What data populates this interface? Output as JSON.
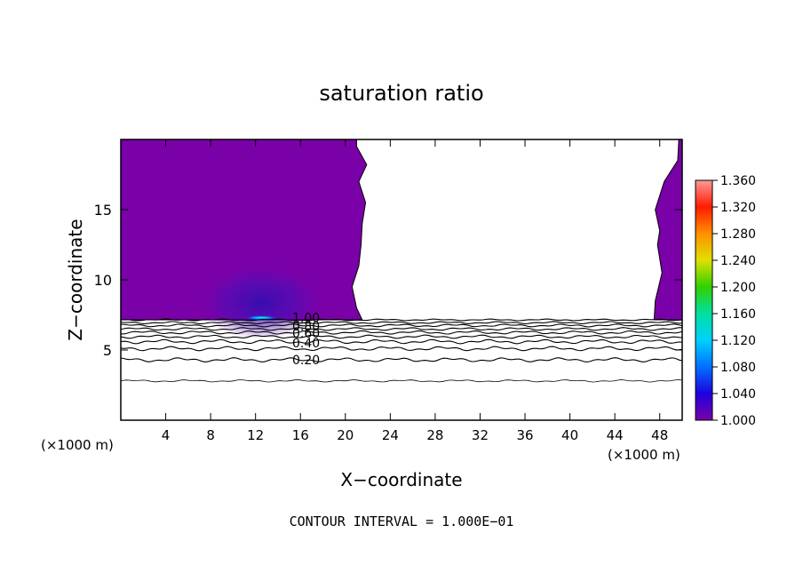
{
  "chart_data": {
    "type": "heatmap",
    "title": "saturation ratio",
    "xlabel": "X−coordinate",
    "ylabel": "Z−coordinate",
    "x_unit_label": "(×1000 m)",
    "z_unit_label": "(×1000 m)",
    "xlim": [
      0,
      50
    ],
    "zlim": [
      0,
      20
    ],
    "x_ticks": [
      4,
      8,
      12,
      16,
      20,
      24,
      28,
      32,
      36,
      40,
      44,
      48
    ],
    "z_ticks": [
      5,
      10,
      15
    ],
    "colorbar": {
      "min": 1.0,
      "max": 1.36,
      "ticks": [
        "1.000",
        "1.040",
        "1.080",
        "1.120",
        "1.160",
        "1.200",
        "1.240",
        "1.280",
        "1.320",
        "1.360"
      ],
      "colors": [
        "#7a00a8",
        "#1e00e0",
        "#0070ff",
        "#00d0ff",
        "#00e0a0",
        "#30d000",
        "#e0e000",
        "#ff9000",
        "#ff1a00",
        "#ff9a9a"
      ]
    },
    "contour_interval": "CONTOUR INTERVAL = 1.000E−01",
    "contour_labels": [
      {
        "label": "1.00",
        "x": 16.5,
        "z": 7.3
      },
      {
        "label": "0.80",
        "x": 16.5,
        "z": 6.7
      },
      {
        "label": "0.60",
        "x": 16.5,
        "z": 6.2
      },
      {
        "label": "0.40",
        "x": 16.5,
        "z": 5.5
      },
      {
        "label": "0.20",
        "x": 16.5,
        "z": 4.3
      }
    ],
    "contour_levels": [
      {
        "level": 0.1,
        "z": 2.8,
        "wobble": 0.08
      },
      {
        "level": 0.2,
        "z": 4.3,
        "wobble": 0.15
      },
      {
        "level": 0.3,
        "z": 5.1,
        "wobble": 0.15
      },
      {
        "level": 0.4,
        "z": 5.6,
        "wobble": 0.15
      },
      {
        "level": 0.5,
        "z": 5.95,
        "wobble": 0.12
      },
      {
        "level": 0.6,
        "z": 6.25,
        "wobble": 0.12
      },
      {
        "level": 0.7,
        "z": 6.5,
        "wobble": 0.1
      },
      {
        "level": 0.8,
        "z": 6.75,
        "wobble": 0.1
      },
      {
        "level": 0.9,
        "z": 6.95,
        "wobble": 0.08
      },
      {
        "level": 1.0,
        "z": 7.15,
        "wobble": 0.06
      }
    ],
    "supersaturated_region_left": {
      "x_range": [
        0,
        21.5
      ],
      "z_range": [
        7.15,
        20
      ],
      "right_edge": [
        [
          21.5,
          7.15
        ],
        [
          21.0,
          8.0
        ],
        [
          20.6,
          9.5
        ],
        [
          21.2,
          11.0
        ],
        [
          21.4,
          12.5
        ],
        [
          21.5,
          14.0
        ],
        [
          21.8,
          15.5
        ],
        [
          21.2,
          17.0
        ],
        [
          21.9,
          18.2
        ],
        [
          21.0,
          19.5
        ],
        [
          21.0,
          20
        ]
      ]
    },
    "supersaturated_region_right": {
      "x_range": [
        47.5,
        50
      ],
      "z_range": [
        7.15,
        20
      ],
      "left_edge": [
        [
          47.5,
          7.15
        ],
        [
          47.6,
          8.5
        ],
        [
          48.2,
          10.5
        ],
        [
          47.8,
          12.5
        ],
        [
          48.0,
          13.5
        ],
        [
          47.6,
          15.0
        ],
        [
          48.4,
          17.0
        ],
        [
          49.6,
          18.5
        ],
        [
          49.7,
          20
        ]
      ]
    },
    "features": [
      {
        "name": "moist-core",
        "value": 1.04,
        "x_range": [
          7,
          18
        ],
        "z_range": [
          7.2,
          12
        ]
      },
      {
        "name": "peak-core",
        "value": 1.11,
        "x_center": 12.5,
        "z_center": 7.3
      }
    ]
  }
}
